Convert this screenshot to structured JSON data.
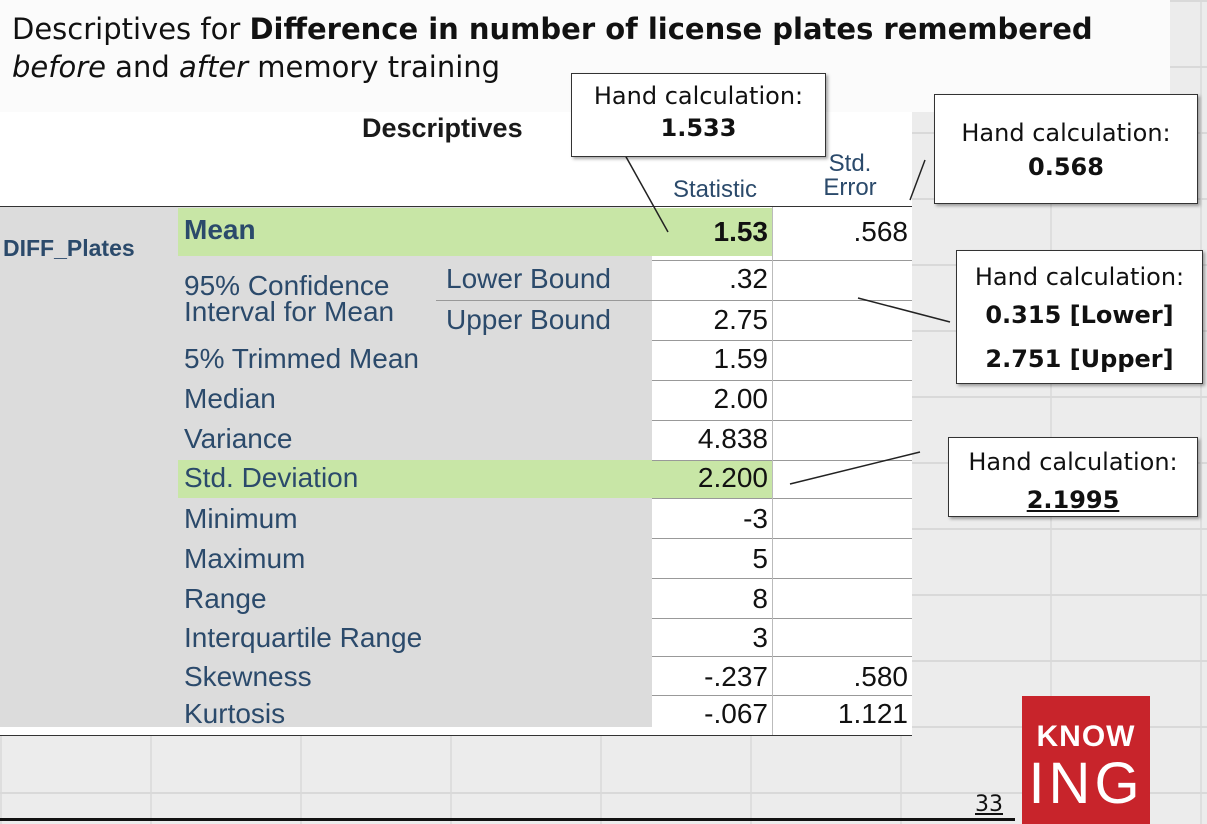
{
  "slide": {
    "title_prefix": "Descriptives for ",
    "title_bold": "Difference  in number of license plates remembered",
    "title_before": "before",
    "title_and": " and ",
    "title_after": "after",
    "title_suffix": " memory training",
    "page_number": "33"
  },
  "table": {
    "title": "Descriptives",
    "col_statistic": "Statistic",
    "col_std": "Std.",
    "col_error": "Error",
    "variable": "DIFF_Plates",
    "rows": [
      {
        "label": "Mean",
        "statistic": "1.53",
        "std_error": ".568"
      },
      {
        "label": "95% Confidence",
        "label2": "Interval for Mean",
        "sub1": "Lower Bound",
        "stat1": ".32",
        "sub2": "Upper Bound",
        "stat2": "2.75"
      },
      {
        "label": "5% Trimmed Mean",
        "statistic": "1.59"
      },
      {
        "label": "Median",
        "statistic": "2.00"
      },
      {
        "label": "Variance",
        "statistic": "4.838"
      },
      {
        "label": "Std. Deviation",
        "statistic": "2.200"
      },
      {
        "label": "Minimum",
        "statistic": "-3"
      },
      {
        "label": "Maximum",
        "statistic": "5"
      },
      {
        "label": "Range",
        "statistic": "8"
      },
      {
        "label": "Interquartile Range",
        "statistic": "3"
      },
      {
        "label": "Skewness",
        "statistic": "-.237",
        "std_error": ".580"
      },
      {
        "label": "Kurtosis",
        "statistic": "-.067",
        "std_error": "1.121"
      }
    ]
  },
  "callouts": {
    "mean": {
      "label": "Hand calculation:",
      "value": "1.533"
    },
    "se": {
      "label": "Hand calculation:",
      "value": "0.568"
    },
    "ci": {
      "label": "Hand calculation:",
      "value1": "0.315 [Lower]",
      "value2": "2.751 [Upper]"
    },
    "sd": {
      "label": "Hand calculation:",
      "value": "2.1995"
    }
  },
  "logo": {
    "line1": "KNOW",
    "line2": "ING",
    "color": "#c8242b"
  }
}
